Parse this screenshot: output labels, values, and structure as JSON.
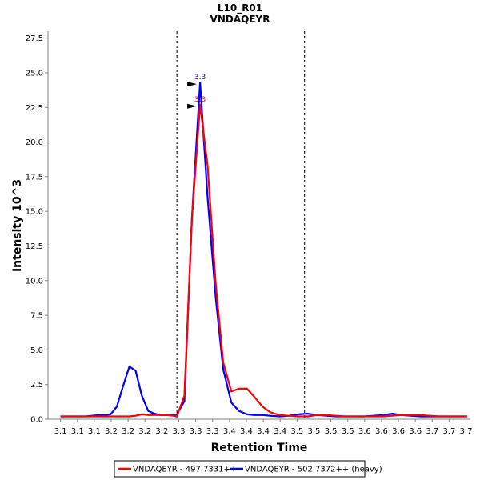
{
  "chart_data": {
    "type": "line",
    "title": "L10_R01",
    "subtitle": "VNDAQEYR",
    "xlabel": "Retention Time",
    "ylabel": "Intensity 10^3",
    "xlim": [
      3.07,
      3.745
    ],
    "ylim": [
      0,
      28
    ],
    "x_ticks": [
      {
        "value": 3.09,
        "label": "3.1"
      },
      {
        "value": 3.117,
        "label": "3.1"
      },
      {
        "value": 3.144,
        "label": "3.1"
      },
      {
        "value": 3.171,
        "label": "3.2"
      },
      {
        "value": 3.198,
        "label": "3.2"
      },
      {
        "value": 3.225,
        "label": "3.2"
      },
      {
        "value": 3.252,
        "label": "3.2"
      },
      {
        "value": 3.279,
        "label": "3.3"
      },
      {
        "value": 3.306,
        "label": "3.3"
      },
      {
        "value": 3.333,
        "label": "3.3"
      },
      {
        "value": 3.36,
        "label": "3.4"
      },
      {
        "value": 3.387,
        "label": "3.4"
      },
      {
        "value": 3.414,
        "label": "3.4"
      },
      {
        "value": 3.441,
        "label": "3.4"
      },
      {
        "value": 3.468,
        "label": "3.5"
      },
      {
        "value": 3.495,
        "label": "3.5"
      },
      {
        "value": 3.522,
        "label": "3.5"
      },
      {
        "value": 3.549,
        "label": "3.5"
      },
      {
        "value": 3.576,
        "label": "3.6"
      },
      {
        "value": 3.603,
        "label": "3.6"
      },
      {
        "value": 3.63,
        "label": "3.6"
      },
      {
        "value": 3.657,
        "label": "3.6"
      },
      {
        "value": 3.684,
        "label": "3.7"
      },
      {
        "value": 3.711,
        "label": "3.7"
      },
      {
        "value": 3.738,
        "label": "3.7"
      }
    ],
    "y_ticks": [
      {
        "value": 0,
        "label": "0.0"
      },
      {
        "value": 2.5,
        "label": "2.5"
      },
      {
        "value": 5,
        "label": "5.0"
      },
      {
        "value": 7.5,
        "label": "7.5"
      },
      {
        "value": 10,
        "label": "10.0"
      },
      {
        "value": 12.5,
        "label": "12.5"
      },
      {
        "value": 15,
        "label": "15.0"
      },
      {
        "value": 17.5,
        "label": "17.5"
      },
      {
        "value": 20,
        "label": "20.0"
      },
      {
        "value": 22.5,
        "label": "22.5"
      },
      {
        "value": 25,
        "label": "25.0"
      },
      {
        "value": 27.5,
        "label": "27.5"
      }
    ],
    "integration_boundaries": [
      3.276,
      3.48
    ],
    "series": [
      {
        "name": "VNDAQEYR - 497.7331++",
        "color": "#ff0000",
        "x": [
          3.09,
          3.1,
          3.11,
          3.12,
          3.13,
          3.14,
          3.15,
          3.16,
          3.17,
          3.18,
          3.19,
          3.2,
          3.21,
          3.22,
          3.23,
          3.24,
          3.25,
          3.26,
          3.27,
          3.276,
          3.288,
          3.3,
          3.313,
          3.325,
          3.338,
          3.35,
          3.363,
          3.375,
          3.388,
          3.4,
          3.413,
          3.425,
          3.44,
          3.455,
          3.47,
          3.485,
          3.5,
          3.515,
          3.53,
          3.545,
          3.56,
          3.575,
          3.59,
          3.605,
          3.62,
          3.635,
          3.65,
          3.665,
          3.68,
          3.695,
          3.71,
          3.725,
          3.74
        ],
        "y": [
          0.2,
          0.2,
          0.2,
          0.2,
          0.2,
          0.2,
          0.2,
          0.2,
          0.2,
          0.2,
          0.2,
          0.2,
          0.25,
          0.35,
          0.3,
          0.3,
          0.3,
          0.3,
          0.25,
          0.2,
          1.7,
          14.5,
          22.7,
          18.3,
          9.8,
          4.1,
          2.0,
          2.2,
          2.2,
          1.6,
          0.9,
          0.5,
          0.3,
          0.25,
          0.2,
          0.2,
          0.3,
          0.3,
          0.25,
          0.2,
          0.2,
          0.2,
          0.2,
          0.2,
          0.25,
          0.3,
          0.3,
          0.3,
          0.25,
          0.2,
          0.2,
          0.2,
          0.2
        ]
      },
      {
        "name": "VNDAQEYR - 502.7372++ (heavy)",
        "color": "#0000ff",
        "x": [
          3.09,
          3.1,
          3.11,
          3.12,
          3.13,
          3.14,
          3.15,
          3.16,
          3.17,
          3.18,
          3.19,
          3.2,
          3.21,
          3.22,
          3.23,
          3.24,
          3.25,
          3.26,
          3.27,
          3.276,
          3.288,
          3.3,
          3.313,
          3.325,
          3.338,
          3.35,
          3.363,
          3.375,
          3.388,
          3.4,
          3.413,
          3.425,
          3.44,
          3.455,
          3.47,
          3.485,
          3.5,
          3.515,
          3.53,
          3.545,
          3.56,
          3.575,
          3.59,
          3.605,
          3.62,
          3.635,
          3.65,
          3.665,
          3.68,
          3.695,
          3.71,
          3.725,
          3.74
        ],
        "y": [
          0.2,
          0.2,
          0.2,
          0.2,
          0.2,
          0.25,
          0.3,
          0.3,
          0.35,
          0.9,
          2.4,
          3.8,
          3.5,
          1.7,
          0.6,
          0.4,
          0.3,
          0.3,
          0.3,
          0.35,
          1.3,
          14.5,
          24.3,
          16.0,
          8.8,
          3.6,
          1.2,
          0.6,
          0.35,
          0.3,
          0.3,
          0.25,
          0.2,
          0.25,
          0.35,
          0.4,
          0.3,
          0.25,
          0.2,
          0.2,
          0.2,
          0.2,
          0.25,
          0.3,
          0.4,
          0.3,
          0.25,
          0.2,
          0.2,
          0.2,
          0.2,
          0.2,
          0.2
        ]
      }
    ],
    "peak_annotations": [
      {
        "series": 0,
        "x": 3.313,
        "y": 22.7,
        "label": "3.3"
      },
      {
        "series": 1,
        "x": 3.313,
        "y": 24.3,
        "label": "3.3"
      }
    ],
    "legend_position": "bottom"
  }
}
